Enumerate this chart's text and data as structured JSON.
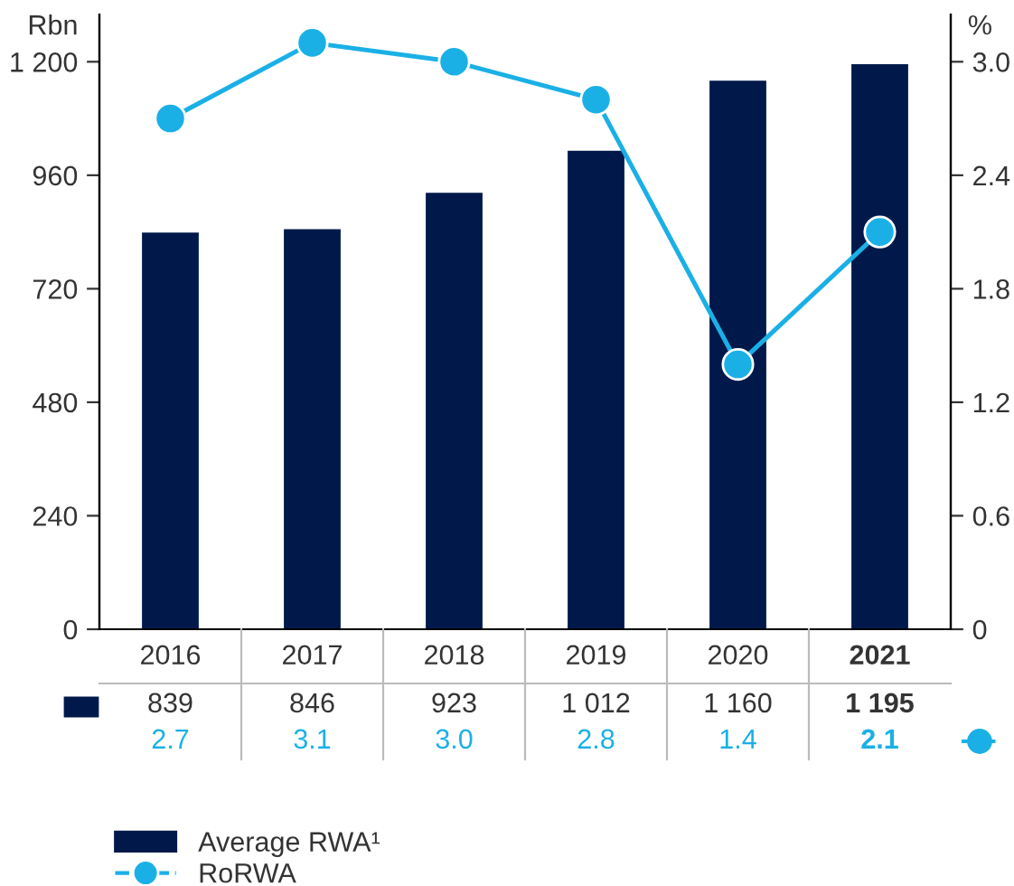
{
  "chart_data": {
    "type": "bar",
    "categories": [
      "2016",
      "2017",
      "2018",
      "2019",
      "2020",
      "2021"
    ],
    "ylabel": "Rbn",
    "y2label": "%",
    "series": [
      {
        "name": "Average RWA¹",
        "color": "#00194a",
        "values": [
          839,
          846,
          923,
          1012,
          1160,
          1195
        ],
        "value_labels": [
          "839",
          "846",
          "923",
          "1 012",
          "1 160",
          "1 195"
        ]
      },
      {
        "name": "RoRWA",
        "type": "line",
        "axis": "y2",
        "color": "#1ab0e6",
        "marker": "circle",
        "values": [
          2.7,
          3.1,
          3.0,
          2.8,
          1.4,
          2.1
        ],
        "value_labels": [
          "2.7",
          "3.1",
          "3.0",
          "2.8",
          "1.4",
          "2.1"
        ]
      }
    ],
    "ylim": [
      0,
      1300
    ],
    "yticks": [
      0,
      240,
      480,
      720,
      960,
      {
        "value": 1200,
        "label": "1 200"
      }
    ],
    "y2lim": [
      0,
      3.25
    ],
    "y2ticks": [
      0,
      {
        "value": 0.6,
        "label": "0.6"
      },
      {
        "value": 1.2,
        "label": "1.2"
      },
      {
        "value": 1.8,
        "label": "1.8"
      },
      {
        "value": 2.4,
        "label": "2.4"
      },
      {
        "value": 3.0,
        "label": "3.0"
      }
    ],
    "grid": false,
    "legend": "bottom left"
  }
}
